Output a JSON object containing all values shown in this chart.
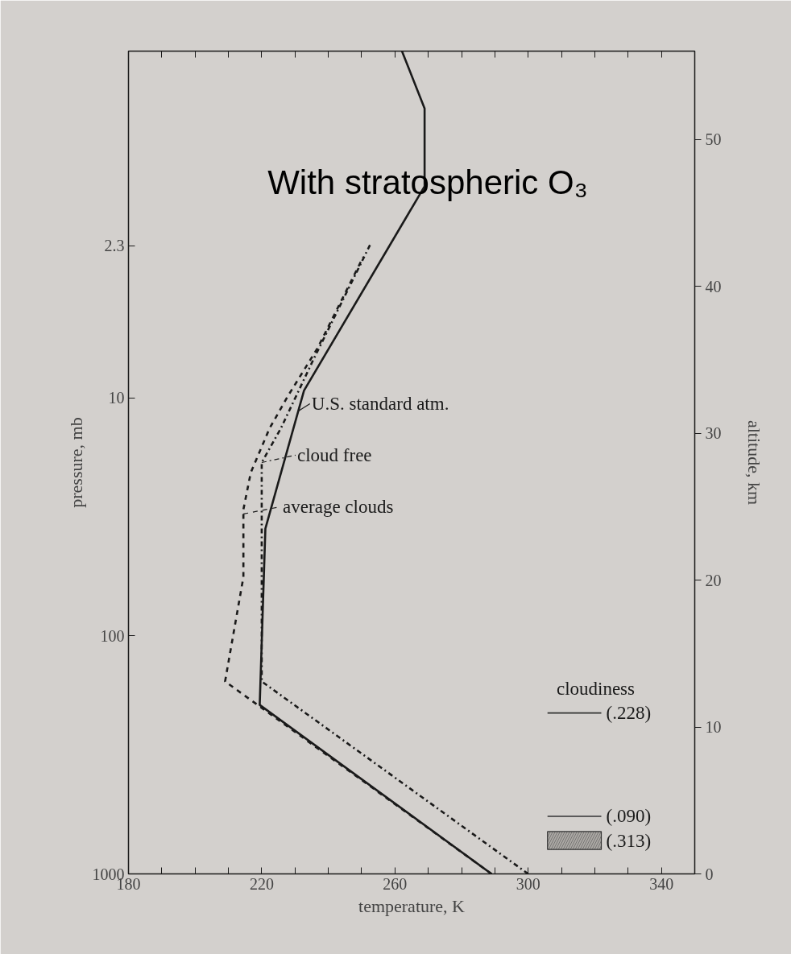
{
  "chart_data": {
    "type": "line",
    "title": "With stratospheric O₃",
    "xlabel": "temperature, K",
    "ylabel": "pressure, mb",
    "y2label": "altitude, km",
    "xlim": [
      180,
      350
    ],
    "xticks": [
      180,
      {
        "value": 190,
        "label": null
      },
      {
        "value": 200,
        "label": null
      },
      {
        "value": 210,
        "label": null
      },
      220,
      {
        "value": 230,
        "label": null
      },
      {
        "value": 240,
        "label": null
      },
      {
        "value": 250,
        "label": null
      },
      260,
      {
        "value": 270,
        "label": null
      },
      {
        "value": 280,
        "label": null
      },
      {
        "value": 290,
        "label": null
      },
      300,
      {
        "value": 310,
        "label": null
      },
      {
        "value": 320,
        "label": null
      },
      {
        "value": 330,
        "label": null
      },
      340
    ],
    "ylim": [
      1000,
      0.35
    ],
    "yticks": [
      1000,
      100,
      10,
      2.3
    ],
    "log": "y",
    "y2lim": [
      0,
      56
    ],
    "y2ticks": [
      0,
      10,
      20,
      30,
      40,
      50
    ],
    "grid": false,
    "legend": "bottom right",
    "legend_title": "cloudiness",
    "marker": "none",
    "series": [
      {
        "name": "U.S. standard atm.",
        "color": "#1a1a1a",
        "axis": "y2",
        "line_style": "solid",
        "x": [
          289,
          219.4,
          221.1,
          232.7,
          268.9,
          268.9,
          262.1
        ],
        "values": [
          0,
          11.5,
          23.5,
          32.9,
          46.8,
          52.1,
          56
        ]
      },
      {
        "name": "cloud free",
        "color": "#1a1a1a",
        "axis": "y2",
        "line_style": "dashdot",
        "x": [
          300,
          220,
          220,
          225.7,
          235.5,
          252.5
        ],
        "values": [
          0,
          13.1,
          28,
          30.3,
          35,
          42.8
        ]
      },
      {
        "name": "average clouds",
        "color": "#1a1a1a",
        "axis": "y2",
        "line_style": "dashed",
        "x": [
          289,
          209,
          214.5,
          214.5,
          216.7,
          222.3,
          227.8,
          236.8,
          250.5
        ],
        "values": [
          0,
          13.1,
          20.2,
          24.8,
          27.3,
          30.3,
          32.5,
          35.8,
          42
        ]
      },
      {
        "name": "(.228)",
        "color": "#333333",
        "line_style": "solid"
      },
      {
        "name": "(.090)",
        "color": "#333333",
        "line_style": "solid"
      },
      {
        "name": "(.313)",
        "type": "area",
        "color": "#8a8784"
      }
    ]
  }
}
